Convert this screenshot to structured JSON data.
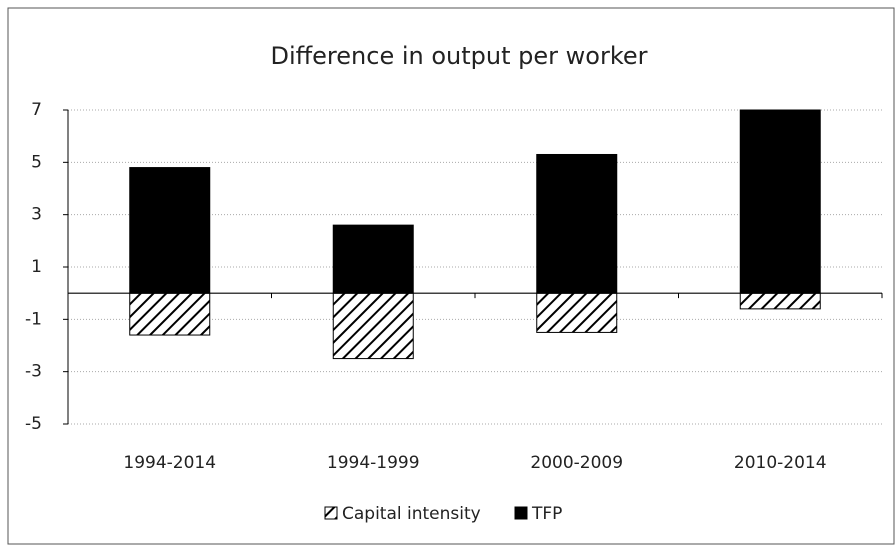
{
  "chart_data": {
    "type": "stacked-bar",
    "title": "Difference in output per worker",
    "categories": [
      "1994-2014",
      "1994-1999",
      "2000-2009",
      "2010-2014"
    ],
    "series": [
      {
        "name": "Capital intensity",
        "color": "#000000",
        "hatch": true,
        "values": [
          -1.6,
          -2.5,
          -1.5,
          -0.6
        ]
      },
      {
        "name": "TFP",
        "color": "#000000",
        "hatch": false,
        "values": [
          4.8,
          2.6,
          5.3,
          7.0
        ]
      }
    ],
    "ylim": [
      -5,
      7
    ],
    "yticks": [
      -5,
      -3,
      -1,
      1,
      3,
      5,
      7
    ],
    "grid": true,
    "legend": "bottom"
  }
}
